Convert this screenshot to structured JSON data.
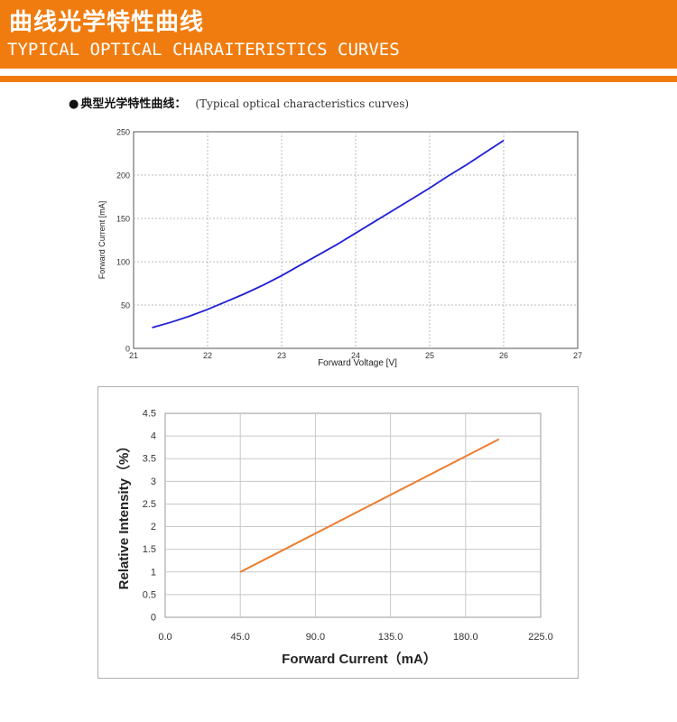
{
  "banner": {
    "title": "曲线光学特性曲线",
    "subtitle": "TYPICAL OPTICAL CHARAITERISTICS CURVES"
  },
  "section_heading": {
    "bullet": "●",
    "title_zh": "典型光学特性曲线：",
    "title_en": "(Typical optical characteristics curves)"
  },
  "colors": {
    "brand_orange": "#f07c0f",
    "curve_blue": "#1f1fd6",
    "curve_orange": "#ed7d31"
  },
  "chart_data": [
    {
      "type": "line",
      "xlabel": "Forward Voltage [V]",
      "ylabel": "Forward Current [mA]",
      "xlim": [
        21,
        27
      ],
      "ylim": [
        0,
        250
      ],
      "x_ticks": [
        "21",
        "22",
        "23",
        "24",
        "25",
        "26",
        "27"
      ],
      "y_ticks": [
        "0",
        "50",
        "100",
        "150",
        "200",
        "250"
      ],
      "grid": "dashed",
      "series": [
        {
          "x": [
            21.25,
            21.5,
            21.75,
            22.0,
            22.25,
            22.5,
            22.75,
            23.0,
            23.25,
            23.5,
            23.75,
            24.0,
            24.25,
            24.5,
            24.75,
            25.0,
            25.25,
            25.5,
            25.75,
            26.0
          ],
          "y": [
            24,
            30,
            37,
            45,
            54,
            63,
            73,
            84,
            96,
            108,
            120,
            133,
            146,
            159,
            172,
            185,
            199,
            212,
            226,
            240
          ]
        }
      ]
    },
    {
      "type": "line",
      "xlabel": "Forward Current（mA）",
      "ylabel": "Relative Intensity（%）",
      "xlim": [
        0,
        225
      ],
      "ylim": [
        0,
        4.5
      ],
      "x_ticks": [
        "0.0",
        "45.0",
        "90.0",
        "135.0",
        "180.0",
        "225.0"
      ],
      "y_ticks": [
        "0",
        "0.5",
        "1",
        "1.5",
        "2",
        "2.5",
        "3",
        "3.5",
        "4",
        "4.5"
      ],
      "grid": "solid",
      "series": [
        {
          "x": [
            45,
            200
          ],
          "y": [
            1.0,
            3.93
          ]
        }
      ]
    }
  ]
}
